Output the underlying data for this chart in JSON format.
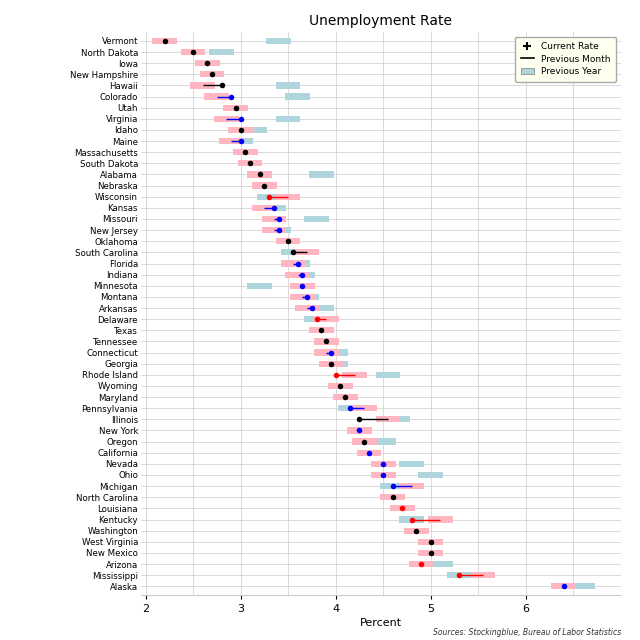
{
  "title": "Unemployment Rate",
  "xlabel": "Percent",
  "source": "Sources: Stockingblue, Bureau of Labor Statistics",
  "states": [
    "Vermont",
    "North Dakota",
    "Iowa",
    "New Hampshire",
    "Hawaii",
    "Colorado",
    "Utah",
    "Virginia",
    "Idaho",
    "Maine",
    "Massachusetts",
    "South Dakota",
    "Alabama",
    "Nebraska",
    "Wisconsin",
    "Kansas",
    "Missouri",
    "New Jersey",
    "Oklahoma",
    "South Carolina",
    "Florida",
    "Indiana",
    "Minnesota",
    "Montana",
    "Arkansas",
    "Delaware",
    "Texas",
    "Tennessee",
    "Connecticut",
    "Georgia",
    "Rhode Island",
    "Wyoming",
    "Maryland",
    "Pennsylvania",
    "Illinois",
    "New York",
    "Oregon",
    "California",
    "Nevada",
    "Ohio",
    "Michigan",
    "North Carolina",
    "Louisiana",
    "Kentucky",
    "Washington",
    "West Virginia",
    "New Mexico",
    "Arizona",
    "Mississippi",
    "Alaska"
  ],
  "current": [
    2.2,
    2.5,
    2.65,
    2.7,
    2.8,
    2.9,
    2.95,
    3.0,
    3.0,
    3.0,
    3.05,
    3.1,
    3.2,
    3.25,
    3.3,
    3.35,
    3.4,
    3.4,
    3.5,
    3.55,
    3.6,
    3.65,
    3.65,
    3.7,
    3.75,
    3.8,
    3.85,
    3.9,
    3.95,
    3.95,
    4.0,
    4.05,
    4.1,
    4.15,
    4.25,
    4.25,
    4.3,
    4.35,
    4.5,
    4.5,
    4.6,
    4.6,
    4.7,
    4.8,
    4.85,
    5.0,
    5.0,
    4.9,
    5.3,
    6.4
  ],
  "prev_month_val": [
    2.2,
    2.5,
    2.65,
    2.7,
    2.6,
    2.75,
    2.95,
    2.85,
    3.0,
    2.9,
    3.05,
    3.1,
    3.2,
    3.25,
    3.5,
    3.25,
    3.35,
    3.35,
    3.5,
    3.7,
    3.55,
    3.6,
    3.65,
    3.65,
    3.7,
    3.9,
    3.85,
    3.9,
    3.9,
    3.95,
    4.2,
    4.05,
    4.1,
    4.3,
    4.55,
    4.25,
    4.3,
    4.35,
    4.5,
    4.5,
    4.8,
    4.6,
    4.7,
    5.1,
    4.85,
    5.0,
    5.0,
    4.9,
    5.55,
    6.4
  ],
  "prev_year_val": [
    3.4,
    2.8,
    2.65,
    2.7,
    3.5,
    3.6,
    2.95,
    3.5,
    3.15,
    3.0,
    3.05,
    3.1,
    3.85,
    3.25,
    3.3,
    3.35,
    3.8,
    3.4,
    3.5,
    3.55,
    3.6,
    3.65,
    3.2,
    3.7,
    3.85,
    3.8,
    3.85,
    3.9,
    4.0,
    4.0,
    4.55,
    4.05,
    4.1,
    4.15,
    4.65,
    4.25,
    4.5,
    4.35,
    4.8,
    5.0,
    4.6,
    4.6,
    4.7,
    4.8,
    4.85,
    5.0,
    5.0,
    5.1,
    5.3,
    6.6
  ],
  "dot_colors": [
    "black",
    "black",
    "black",
    "black",
    "black",
    "blue",
    "black",
    "blue",
    "black",
    "blue",
    "black",
    "black",
    "black",
    "black",
    "red",
    "blue",
    "blue",
    "blue",
    "black",
    "black",
    "blue",
    "blue",
    "blue",
    "blue",
    "blue",
    "red",
    "black",
    "black",
    "blue",
    "black",
    "red",
    "black",
    "black",
    "blue",
    "black",
    "blue",
    "black",
    "blue",
    "blue",
    "blue",
    "blue",
    "black",
    "red",
    "red",
    "black",
    "black",
    "black",
    "red",
    "red",
    "blue"
  ],
  "xlim": [
    1.95,
    7.0
  ],
  "xticks": [
    2,
    3,
    4,
    5,
    6
  ],
  "grid_color": "#cccccc",
  "prev_year_color": "#aed6dc",
  "prev_month_color": "#ffb6c1",
  "legend_bg": "#fffff0"
}
